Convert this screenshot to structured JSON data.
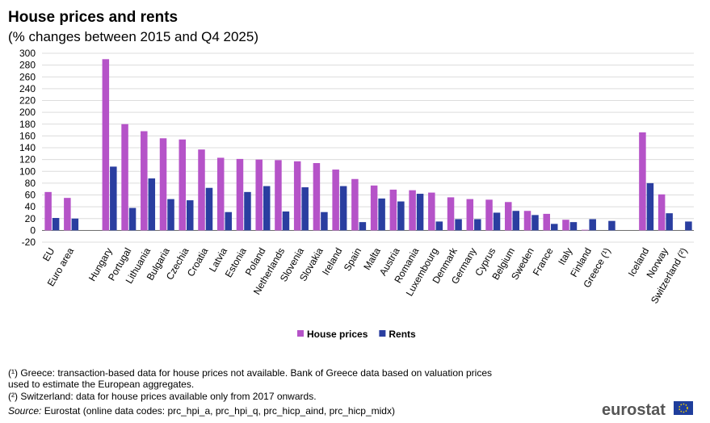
{
  "chart_data": {
    "type": "bar",
    "title": "House prices and rents",
    "subtitle": "(% changes between 2015 and Q4 2025)",
    "categories": [
      "EU",
      "Euro area",
      null,
      "Hungary",
      "Portugal",
      "Lithuania",
      "Bulgaria",
      "Czechia",
      "Croatia",
      "Latvia",
      "Estonia",
      "Poland",
      "Netherlands",
      "Slovenia",
      "Slovakia",
      "Ireland",
      "Spain",
      "Malta",
      "Austria",
      "Romania",
      "Luxembourg",
      "Denmark",
      "Germany",
      "Cyprus",
      "Belgium",
      "Sweden",
      "France",
      "Italy",
      "Finland",
      "Greece (¹)",
      null,
      "Iceland",
      "Norway",
      "Switzerland (²)"
    ],
    "series": [
      {
        "name": "House prices",
        "color": "#b553c8",
        "values": [
          65,
          55,
          null,
          290,
          180,
          168,
          156,
          154,
          137,
          123,
          121,
          120,
          119,
          117,
          114,
          103,
          87,
          76,
          69,
          68,
          64,
          56,
          53,
          52,
          48,
          33,
          28,
          18,
          1,
          null,
          null,
          166,
          61,
          null
        ]
      },
      {
        "name": "Rents",
        "color": "#2a3ea0",
        "values": [
          21,
          20,
          null,
          108,
          38,
          88,
          53,
          51,
          72,
          31,
          65,
          75,
          32,
          73,
          31,
          75,
          14,
          54,
          49,
          62,
          15,
          19,
          19,
          30,
          33,
          26,
          11,
          14,
          19,
          16,
          null,
          80,
          29,
          15
        ]
      }
    ],
    "ylim": [
      -20,
      300
    ],
    "yticks": [
      -20,
      0,
      20,
      40,
      60,
      80,
      100,
      120,
      140,
      160,
      180,
      200,
      220,
      240,
      260,
      280,
      300
    ],
    "grid": true,
    "legend": "bottom"
  },
  "footnotes": [
    "(¹) Greece: transaction-based data for house prices not available. Bank of Greece data based on valuation prices",
    "used to estimate the European aggregates.",
    "(²) Switzerland: data for house prices available only from 2017 onwards."
  ],
  "source_label": "Source:",
  "source_text": " Eurostat (online data codes: prc_hpi_a, prc_hpi_q, prc_hicp_aind, prc_hicp_midx)",
  "logo": "eurostat"
}
